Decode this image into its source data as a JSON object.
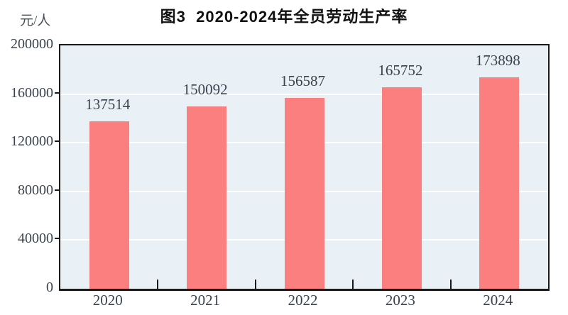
{
  "chart_data": {
    "type": "bar",
    "title": "图3  2020-2024年全员劳动生产率",
    "unit_label": "元/人",
    "categories": [
      "2020",
      "2021",
      "2022",
      "2023",
      "2024"
    ],
    "values": [
      137514,
      150092,
      156587,
      165752,
      173898
    ],
    "data_labels": [
      "137514",
      "150092",
      "156587",
      "165752",
      "173898"
    ],
    "xlabel": "",
    "ylabel": "元/人",
    "ylim": [
      0,
      200000
    ],
    "y_ticks": [
      0,
      40000,
      80000,
      120000,
      160000,
      200000
    ],
    "y_tick_labels": [
      "0",
      "40000",
      "80000",
      "120000",
      "160000",
      "200000"
    ],
    "grid": true,
    "gridline_color": "#ffffff",
    "legend_position": "none"
  },
  "colors": {
    "bar_fill": "#fb7f7f",
    "plot_background": "#e9f1f6",
    "axis_frame": "#1a1a1a",
    "axis_text": "#39424d",
    "title_text": "#111111",
    "page_background": "#ffffff"
  }
}
